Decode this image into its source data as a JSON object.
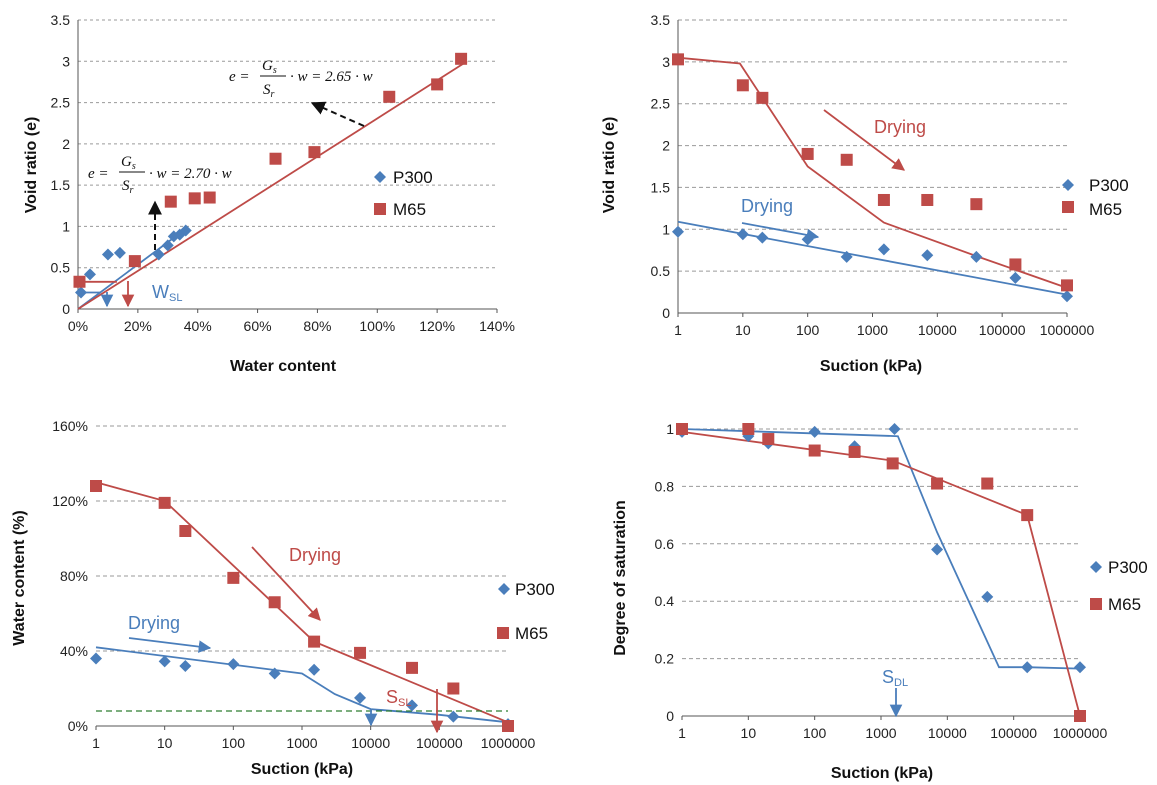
{
  "colors": {
    "p300": "#4a7ebb",
    "m65": "#be4b48",
    "grid": "#9a9a9a",
    "dash": "#2e7d32"
  },
  "chart_data": [
    {
      "type": "scatter",
      "xlabel": "Water content",
      "ylabel": "Void ratio (e)",
      "xticks": [
        "0%",
        "20%",
        "40%",
        "60%",
        "80%",
        "100%",
        "120%",
        "140%"
      ],
      "yticks": [
        "0",
        "0.5",
        "1",
        "1.5",
        "2",
        "2.5",
        "3",
        "3.5"
      ],
      "xlim": [
        0,
        1.4
      ],
      "ylim": [
        0,
        3.5
      ],
      "legend": [
        "P300",
        "M65"
      ],
      "series": [
        {
          "name": "P300",
          "marker": "diamond",
          "x": [
            0.01,
            0.04,
            0.1,
            0.14,
            0.27,
            0.3,
            0.32,
            0.34,
            0.36
          ],
          "y": [
            0.2,
            0.42,
            0.66,
            0.68,
            0.66,
            0.77,
            0.88,
            0.9,
            0.95
          ]
        },
        {
          "name": "M65",
          "marker": "square",
          "x": [
            0.005,
            0.19,
            0.31,
            0.39,
            0.44,
            0.66,
            0.79,
            1.04,
            1.2,
            1.28
          ],
          "y": [
            0.33,
            0.58,
            1.3,
            1.34,
            1.35,
            1.82,
            1.9,
            2.57,
            2.72,
            3.03
          ]
        },
        {
          "line": true,
          "color": "p300",
          "x": [
            0,
            0.36
          ],
          "y": [
            0,
            0.97
          ]
        },
        {
          "line": true,
          "color": "m65",
          "x": [
            0,
            1.3
          ],
          "y": [
            0,
            3.0
          ]
        },
        {
          "line": true,
          "color": "m65",
          "x": [
            0,
            0.13
          ],
          "y": [
            0.33,
            0.33
          ]
        },
        {
          "line": true,
          "color": "p300",
          "x": [
            0,
            0.075
          ],
          "y": [
            0.2,
            0.2
          ]
        }
      ],
      "annotations": {
        "formula_upper": {
          "lhs": "e =",
          "num": "G",
          "num_sub": "s",
          "den": "S",
          "den_sub": "r",
          "rhs": "· w = 2.65 · w"
        },
        "formula_lower": {
          "lhs": "e =",
          "num": "G",
          "num_sub": "s",
          "den": "S",
          "den_sub": "r",
          "rhs": "· w = 2.70 · w"
        },
        "wsl_label": "W",
        "wsl_sub": "SL"
      }
    },
    {
      "type": "scatter",
      "xlabel": "Suction (kPa)",
      "ylabel": "Void ratio (e)",
      "xscale": "log",
      "xticks": [
        "1",
        "10",
        "100",
        "1000",
        "10000",
        "100000",
        "1000000"
      ],
      "yticks": [
        "0",
        "0.5",
        "1",
        "1.5",
        "2",
        "2.5",
        "3",
        "3.5"
      ],
      "xlim": [
        1,
        1000000
      ],
      "ylim": [
        0,
        3.5
      ],
      "legend": [
        "P300",
        "M65"
      ],
      "series": [
        {
          "name": "P300",
          "marker": "diamond",
          "x": [
            1,
            10,
            20,
            100,
            400,
            1500,
            7000,
            40000,
            160000,
            1000000
          ],
          "y": [
            0.97,
            0.94,
            0.9,
            0.88,
            0.67,
            0.76,
            0.69,
            0.67,
            0.42,
            0.2
          ]
        },
        {
          "name": "M65",
          "marker": "square",
          "x": [
            1,
            10,
            20,
            100,
            400,
            1500,
            7000,
            40000,
            160000,
            1000000
          ],
          "y": [
            3.03,
            2.72,
            2.57,
            1.9,
            1.83,
            1.35,
            1.35,
            1.3,
            0.58,
            0.33
          ]
        },
        {
          "line": true,
          "color": "p300",
          "x": [
            1,
            1000000
          ],
          "y": [
            1.09,
            0.22
          ]
        },
        {
          "line": true,
          "color": "m65",
          "x": [
            1,
            9,
            100,
            1500,
            40000,
            1000000
          ],
          "y": [
            3.05,
            2.98,
            1.75,
            1.08,
            0.68,
            0.3
          ]
        }
      ],
      "annotations": {
        "drying_m65": "Drying",
        "drying_p300": "Drying"
      }
    },
    {
      "type": "scatter",
      "xlabel": "Suction (kPa)",
      "ylabel": "Water content (%)",
      "xscale": "log",
      "xticks": [
        "1",
        "10",
        "100",
        "1000",
        "10000",
        "100000",
        "1000000"
      ],
      "yticks": [
        "0%",
        "40%",
        "80%",
        "120%",
        "160%"
      ],
      "xlim": [
        1,
        1000000
      ],
      "ylim": [
        0,
        160
      ],
      "legend": [
        "P300",
        "M65"
      ],
      "series": [
        {
          "name": "P300",
          "marker": "diamond",
          "x": [
            1,
            10,
            20,
            100,
            400,
            1500,
            7000,
            40000,
            160000,
            1000000
          ],
          "y": [
            36,
            34.5,
            32,
            33,
            28,
            30,
            15,
            11,
            5,
            1
          ]
        },
        {
          "name": "M65",
          "marker": "square",
          "x": [
            1,
            10,
            20,
            100,
            400,
            1500,
            7000,
            40000,
            160000,
            1000000
          ],
          "y": [
            128,
            119,
            104,
            79,
            66,
            45,
            39,
            31,
            20,
            0
          ]
        },
        {
          "line": true,
          "color": "p300",
          "x": [
            1,
            1000,
            3000,
            10000,
            100000,
            1000000
          ],
          "y": [
            42,
            28,
            17,
            9,
            6,
            2
          ]
        },
        {
          "line": true,
          "color": "m65",
          "x": [
            1,
            10,
            1500,
            1000000
          ],
          "y": [
            130,
            120,
            45,
            2
          ]
        },
        {
          "line": true,
          "color": "dash",
          "dashed": true,
          "x": [
            1,
            1000000
          ],
          "y": [
            8,
            8
          ]
        }
      ],
      "annotations": {
        "drying_m65": "Drying",
        "drying_p300": "Drying",
        "ssl_label": "S",
        "ssl_sub": "SL"
      }
    },
    {
      "type": "scatter",
      "xlabel": "Suction (kPa)",
      "ylabel": "Degree of saturation",
      "xscale": "log",
      "xticks": [
        "1",
        "10",
        "100",
        "1000",
        "10000",
        "100000",
        "1000000"
      ],
      "yticks": [
        "0",
        "0.2",
        "0.4",
        "0.6",
        "0.8",
        "1"
      ],
      "xlim": [
        1,
        1000000
      ],
      "ylim": [
        0,
        1
      ],
      "legend": [
        "P300",
        "M65"
      ],
      "series": [
        {
          "name": "P300",
          "marker": "diamond",
          "x": [
            1,
            10,
            20,
            100,
            400,
            1600,
            7000,
            40000,
            160000,
            1000000
          ],
          "y": [
            0.99,
            0.975,
            0.95,
            0.99,
            0.94,
            1.0,
            0.58,
            0.415,
            0.17,
            0.17
          ]
        },
        {
          "name": "M65",
          "marker": "square",
          "x": [
            1,
            10,
            20,
            100,
            400,
            1500,
            7000,
            40000,
            160000,
            1000000
          ],
          "y": [
            1.0,
            1.0,
            0.965,
            0.925,
            0.92,
            0.88,
            0.81,
            0.81,
            0.7,
            0.0
          ]
        },
        {
          "line": true,
          "color": "p300",
          "x": [
            1,
            1800,
            7000,
            60000,
            160000,
            1000000
          ],
          "y": [
            1.0,
            0.975,
            0.64,
            0.17,
            0.17,
            0.165
          ]
        },
        {
          "line": true,
          "color": "m65",
          "x": [
            1,
            1500,
            160000,
            1000000
          ],
          "y": [
            0.99,
            0.89,
            0.7,
            0.0
          ]
        }
      ],
      "annotations": {
        "sdl_label": "S",
        "sdl_sub": "DL"
      }
    }
  ]
}
